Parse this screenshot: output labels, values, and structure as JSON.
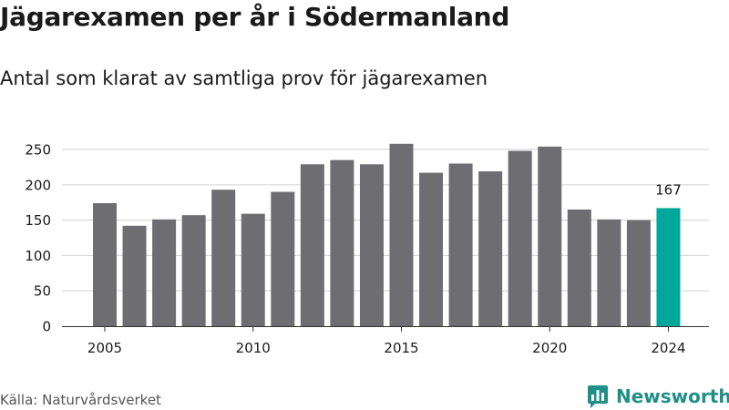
{
  "header": {
    "title": "Jägarexamen per år i Södermanland",
    "subtitle": "Antal som klarat av samtliga prov för jägarexamen"
  },
  "footer": {
    "source": "Källa: Naturvårdsverket",
    "brand": "Newsworthy"
  },
  "colors": {
    "bar": "#6e6d72",
    "highlight": "#00a79a",
    "grid": "#d9d9d9",
    "axis": "#333333",
    "brand": "#1f8f88"
  },
  "icons": {
    "brand_logo": "bar-chart-speech-bubble-icon"
  },
  "chart_data": {
    "type": "bar",
    "title": "Jägarexamen per år i Södermanland",
    "subtitle": "Antal som klarat av samtliga prov för jägarexamen",
    "categories": [
      2005,
      2006,
      2007,
      2008,
      2009,
      2010,
      2011,
      2012,
      2013,
      2014,
      2015,
      2016,
      2017,
      2018,
      2019,
      2020,
      2021,
      2022,
      2023,
      2024
    ],
    "values": [
      174,
      142,
      151,
      157,
      193,
      159,
      190,
      229,
      235,
      229,
      258,
      217,
      230,
      219,
      248,
      254,
      165,
      151,
      150,
      167
    ],
    "x_ticks": [
      2005,
      2010,
      2015,
      2020,
      2024
    ],
    "y_ticks": [
      0,
      50,
      100,
      150,
      200,
      250
    ],
    "ylim": [
      0,
      265
    ],
    "grid": true,
    "highlighted_category": 2024,
    "data_labels": [
      {
        "category": 2024,
        "text": "167"
      }
    ],
    "xlabel": "",
    "ylabel": ""
  }
}
